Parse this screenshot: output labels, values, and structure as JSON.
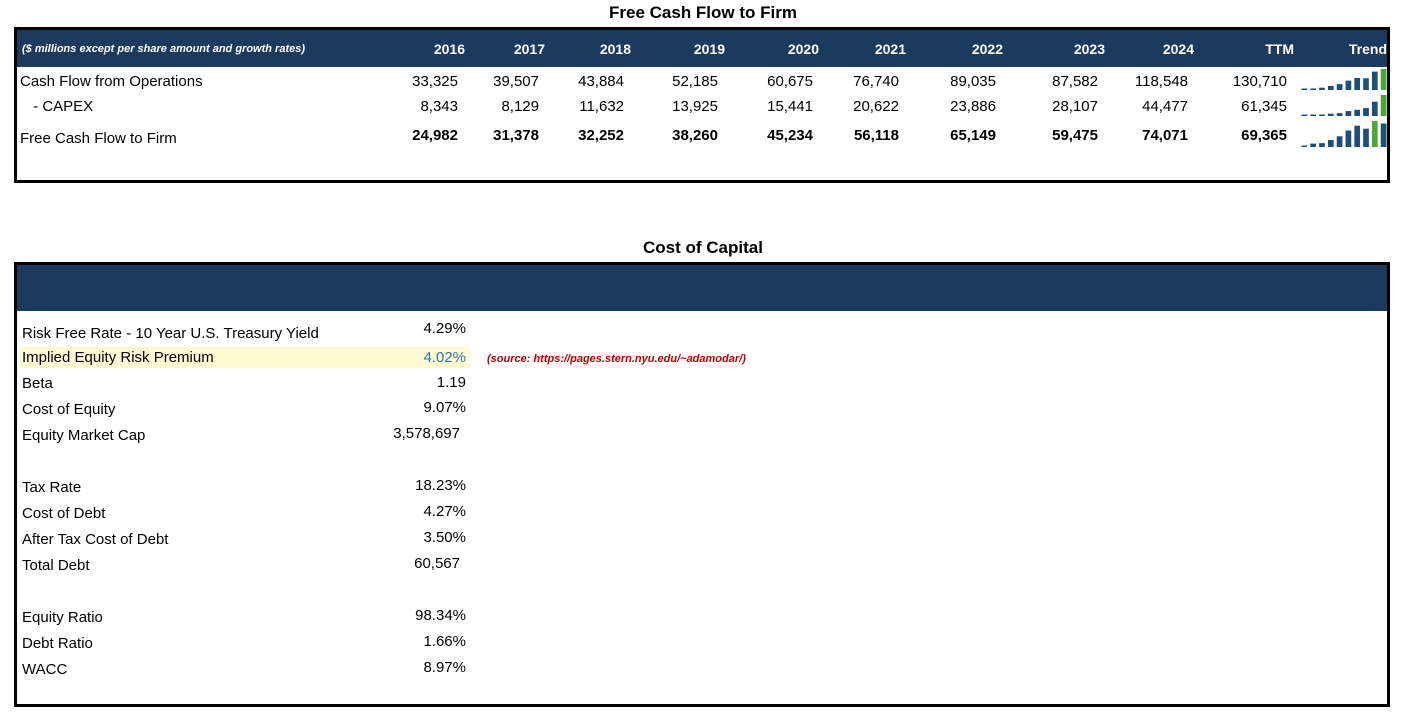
{
  "fcf": {
    "title": "Free Cash Flow to Firm",
    "note": "($ millions except per share amount and growth rates)",
    "columns": [
      "2016",
      "2017",
      "2018",
      "2019",
      "2020",
      "2021",
      "2022",
      "2023",
      "2024",
      "TTM"
    ],
    "trend_label": "Trend",
    "rows": [
      {
        "label": "Cash Flow from Operations",
        "values": [
          "33,325",
          "39,507",
          "43,884",
          "52,185",
          "60,675",
          "76,740",
          "89,035",
          "87,582",
          "118,548",
          "130,710"
        ],
        "trend": [
          33325,
          39507,
          43884,
          52185,
          60675,
          76740,
          89035,
          87582,
          118548,
          130710
        ]
      },
      {
        "label": " - CAPEX",
        "values": [
          "8,343",
          "8,129",
          "11,632",
          "13,925",
          "15,441",
          "20,622",
          "23,886",
          "28,107",
          "44,477",
          "61,345"
        ],
        "trend": [
          8343,
          8129,
          11632,
          13925,
          15441,
          20622,
          23886,
          28107,
          44477,
          61345
        ]
      },
      {
        "label": "Free Cash Flow to Firm",
        "values": [
          "24,982",
          "31,378",
          "32,252",
          "38,260",
          "45,234",
          "56,118",
          "65,149",
          "59,475",
          "74,071",
          "69,365"
        ],
        "trend": [
          24982,
          31378,
          32252,
          38260,
          45234,
          56118,
          65149,
          59475,
          74071,
          69365
        ]
      }
    ],
    "colors": {
      "header": "#1b3a5e",
      "spark": "#1f4e79",
      "spark_high": "#4ea72e"
    }
  },
  "coc": {
    "title": "Cost of Capital",
    "source_note": "(source: https://pages.stern.nyu.edu/~adamodar/)",
    "rows": [
      {
        "label": "Risk Free Rate - 10 Year U.S. Treasury Yield",
        "value": "4.29%"
      },
      {
        "label": "Implied Equity Risk Premium",
        "value": "4.02%"
      },
      {
        "label": "Beta",
        "value": "1.19"
      },
      {
        "label": "Cost of Equity",
        "value": "9.07%"
      },
      {
        "label": "Equity Market Cap",
        "value": "3,578,697"
      },
      {
        "label": "Tax Rate",
        "value": "18.23%"
      },
      {
        "label": "Cost of Debt",
        "value": "4.27%"
      },
      {
        "label": "After Tax Cost of Debt",
        "value": "3.50%"
      },
      {
        "label": "Total Debt",
        "value": "60,567"
      },
      {
        "label": "Equity Ratio",
        "value": "98.34%"
      },
      {
        "label": "Debt Ratio",
        "value": "1.66%"
      },
      {
        "label": "WACC",
        "value": "8.97%"
      }
    ],
    "colors": {
      "highlight": "#fffbd0",
      "input_value": "#2e75b6",
      "source": "#c00000"
    }
  }
}
